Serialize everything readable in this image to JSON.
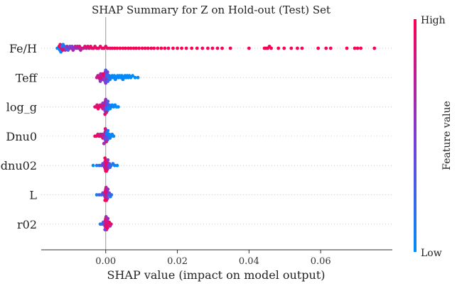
{
  "chart_data": {
    "type": "scatter",
    "subtype": "shap-beeswarm",
    "title": "SHAP Summary for Z on Hold-out (Test) Set",
    "xlabel": "SHAP value (impact on model output)",
    "xlim": [
      -0.018,
      0.08
    ],
    "xticks": [
      {
        "value": 0.0,
        "label": "0.00"
      },
      {
        "value": 0.02,
        "label": "0.02"
      },
      {
        "value": 0.04,
        "label": "0.04"
      },
      {
        "value": 0.06,
        "label": "0.06"
      }
    ],
    "colorbar": {
      "label": "Feature value",
      "high": "High",
      "low": "Low",
      "low_color": "#008bfb",
      "mid_color": "#7d3cd6",
      "high_color": "#ff0052"
    },
    "grid": "dotted-horizontal",
    "features": [
      {
        "name": "Fe/H",
        "points": [
          [
            -0.0135,
            0.0
          ],
          [
            -0.013,
            0.05
          ],
          [
            -0.013,
            0.95
          ],
          [
            -0.0128,
            0.1
          ],
          [
            -0.0127,
            0.9
          ],
          [
            -0.0125,
            0.0
          ],
          [
            -0.0124,
            0.85
          ],
          [
            -0.0122,
            0.05
          ],
          [
            -0.012,
            0.9
          ],
          [
            -0.0119,
            0.1
          ],
          [
            -0.0117,
            0.8
          ],
          [
            -0.0115,
            0.15
          ],
          [
            -0.0113,
            0.7
          ],
          [
            -0.011,
            0.2
          ],
          [
            -0.0108,
            0.6
          ],
          [
            -0.0105,
            0.3
          ],
          [
            -0.0102,
            0.55
          ],
          [
            -0.01,
            0.45
          ],
          [
            -0.0097,
            0.6
          ],
          [
            -0.0094,
            0.5
          ],
          [
            -0.0091,
            0.7
          ],
          [
            -0.0088,
            0.55
          ],
          [
            -0.0085,
            0.75
          ],
          [
            -0.0082,
            0.6
          ],
          [
            -0.0079,
            0.8
          ],
          [
            -0.0076,
            0.65
          ],
          [
            -0.0073,
            0.85
          ],
          [
            -0.007,
            0.7
          ],
          [
            -0.0066,
            0.85
          ],
          [
            -0.0062,
            0.75
          ],
          [
            -0.0058,
            0.9
          ],
          [
            -0.0054,
            0.8
          ],
          [
            -0.005,
            0.9
          ],
          [
            -0.0046,
            0.85
          ],
          [
            -0.0042,
            0.95
          ],
          [
            -0.0038,
            0.85
          ],
          [
            -0.0034,
            0.95
          ],
          [
            -0.003,
            0.9
          ],
          [
            -0.0025,
            0.95
          ],
          [
            -0.002,
            0.9
          ],
          [
            -0.0015,
            0.95
          ],
          [
            -0.001,
            0.9
          ],
          [
            -0.0005,
            0.95
          ],
          [
            0.0,
            0.9
          ],
          [
            0.0005,
            0.95
          ],
          [
            0.0012,
            0.9
          ],
          [
            0.0018,
            0.95
          ],
          [
            0.0025,
            1.0
          ],
          [
            0.0032,
            0.95
          ],
          [
            0.004,
            1.0
          ],
          [
            0.0048,
            0.95
          ],
          [
            0.0055,
            1.0
          ],
          [
            0.0063,
            0.95
          ],
          [
            0.007,
            1.0
          ],
          [
            0.0078,
            0.95
          ],
          [
            0.0085,
            1.0
          ],
          [
            0.0093,
            0.95
          ],
          [
            0.0102,
            1.0
          ],
          [
            0.011,
            0.95
          ],
          [
            0.0118,
            1.0
          ],
          [
            0.0127,
            0.95
          ],
          [
            0.0135,
            1.0
          ],
          [
            0.0145,
            0.95
          ],
          [
            0.0155,
            1.0
          ],
          [
            0.0165,
            1.0
          ],
          [
            0.0175,
            0.95
          ],
          [
            0.0188,
            1.0
          ],
          [
            0.02,
            0.95
          ],
          [
            0.0212,
            1.0
          ],
          [
            0.0225,
            0.95
          ],
          [
            0.024,
            1.0
          ],
          [
            0.0255,
            1.0
          ],
          [
            0.027,
            0.95
          ],
          [
            0.0285,
            1.0
          ],
          [
            0.0298,
            1.0
          ],
          [
            0.0312,
            0.95
          ],
          [
            0.0325,
            1.0
          ],
          [
            0.0348,
            1.0
          ],
          [
            0.04,
            1.0
          ],
          [
            0.0443,
            1.0
          ],
          [
            0.0447,
            0.95
          ],
          [
            0.0452,
            1.0
          ],
          [
            0.0457,
            0.95
          ],
          [
            0.0462,
            1.0
          ],
          [
            0.0482,
            1.0
          ],
          [
            0.0498,
            1.0
          ],
          [
            0.0518,
            1.0
          ],
          [
            0.0535,
            1.0
          ],
          [
            0.0548,
            0.95
          ],
          [
            0.0593,
            1.0
          ],
          [
            0.0615,
            1.0
          ],
          [
            0.0628,
            0.95
          ],
          [
            0.0673,
            1.0
          ],
          [
            0.0695,
            1.0
          ],
          [
            0.0703,
            0.95
          ],
          [
            0.0712,
            1.0
          ],
          [
            0.075,
            1.0
          ]
        ]
      },
      {
        "name": "Teff",
        "points": [
          [
            -0.0025,
            0.7
          ],
          [
            -0.0022,
            0.8
          ],
          [
            -0.002,
            0.9
          ],
          [
            -0.0018,
            0.75
          ],
          [
            -0.0016,
            0.85
          ],
          [
            -0.0014,
            0.6
          ],
          [
            -0.0012,
            0.9
          ],
          [
            -0.001,
            0.7
          ],
          [
            -0.0008,
            0.8
          ],
          [
            -0.0006,
            0.6
          ],
          [
            -0.0005,
            0.9
          ],
          [
            -0.0004,
            0.5
          ],
          [
            -0.0003,
            0.7
          ],
          [
            -0.0002,
            0.4
          ],
          [
            -0.0001,
            0.6
          ],
          [
            0.0,
            0.5
          ],
          [
            0.0001,
            0.4
          ],
          [
            0.0002,
            0.3
          ],
          [
            0.0003,
            0.6
          ],
          [
            0.0004,
            0.2
          ],
          [
            0.0006,
            0.3
          ],
          [
            0.0008,
            0.1
          ],
          [
            0.001,
            0.2
          ],
          [
            0.0012,
            0.05
          ],
          [
            0.0015,
            0.1
          ],
          [
            0.0018,
            0.0
          ],
          [
            0.0021,
            0.05
          ],
          [
            0.0024,
            0.0
          ],
          [
            0.0027,
            0.05
          ],
          [
            0.003,
            0.0
          ],
          [
            0.0033,
            0.0
          ],
          [
            0.0036,
            0.05
          ],
          [
            0.0039,
            0.0
          ],
          [
            0.0042,
            0.0
          ],
          [
            0.0045,
            0.0
          ],
          [
            0.0048,
            0.05
          ],
          [
            0.0051,
            0.0
          ],
          [
            0.0054,
            0.0
          ],
          [
            0.0057,
            0.0
          ],
          [
            0.006,
            0.0
          ],
          [
            0.0063,
            0.0
          ],
          [
            0.0066,
            0.0
          ],
          [
            0.007,
            0.0
          ],
          [
            0.0075,
            0.0
          ],
          [
            0.0082,
            0.0
          ],
          [
            0.009,
            0.0
          ],
          [
            -0.0015,
            0.5
          ],
          [
            0.0,
            0.3
          ],
          [
            0.0005,
            0.5
          ],
          [
            -0.0008,
            0.95
          ]
        ]
      },
      {
        "name": "log_g",
        "points": [
          [
            -0.003,
            0.9
          ],
          [
            -0.0027,
            0.95
          ],
          [
            -0.0024,
            0.85
          ],
          [
            -0.0021,
            0.9
          ],
          [
            -0.0018,
            0.95
          ],
          [
            -0.0015,
            0.8
          ],
          [
            -0.0012,
            0.9
          ],
          [
            -0.001,
            0.75
          ],
          [
            -0.0008,
            0.85
          ],
          [
            -0.0006,
            0.7
          ],
          [
            -0.0005,
            0.9
          ],
          [
            -0.0004,
            0.6
          ],
          [
            -0.0003,
            0.8
          ],
          [
            -0.0002,
            0.5
          ],
          [
            -0.0001,
            0.7
          ],
          [
            0.0,
            0.4
          ],
          [
            0.0,
            0.6
          ],
          [
            0.0001,
            0.3
          ],
          [
            0.0002,
            0.5
          ],
          [
            0.0003,
            0.2
          ],
          [
            0.0004,
            0.4
          ],
          [
            0.0005,
            0.1
          ],
          [
            0.0006,
            0.3
          ],
          [
            0.0008,
            0.05
          ],
          [
            0.001,
            0.2
          ],
          [
            0.0012,
            0.0
          ],
          [
            0.0015,
            0.1
          ],
          [
            0.0018,
            0.0
          ],
          [
            0.0022,
            0.05
          ],
          [
            0.0026,
            0.0
          ],
          [
            0.003,
            0.0
          ],
          [
            0.0035,
            0.0
          ],
          [
            -0.0008,
            0.6
          ],
          [
            -0.0002,
            0.9
          ],
          [
            0.0002,
            0.8
          ]
        ]
      },
      {
        "name": "Dnu0",
        "points": [
          [
            -0.003,
            0.9
          ],
          [
            -0.0026,
            0.95
          ],
          [
            -0.0022,
            0.85
          ],
          [
            -0.0018,
            0.9
          ],
          [
            -0.0015,
            0.8
          ],
          [
            -0.0012,
            0.95
          ],
          [
            -0.001,
            0.7
          ],
          [
            -0.0008,
            0.9
          ],
          [
            -0.0006,
            0.6
          ],
          [
            -0.0004,
            0.8
          ],
          [
            -0.0003,
            0.5
          ],
          [
            -0.0002,
            0.7
          ],
          [
            -0.0001,
            0.4
          ],
          [
            0.0,
            0.6
          ],
          [
            0.0,
            0.3
          ],
          [
            0.0001,
            0.5
          ],
          [
            0.0002,
            0.2
          ],
          [
            0.0003,
            0.4
          ],
          [
            0.0004,
            0.1
          ],
          [
            0.0005,
            0.3
          ],
          [
            0.0006,
            0.05
          ],
          [
            0.0008,
            0.2
          ],
          [
            0.001,
            0.0
          ],
          [
            0.0012,
            0.1
          ],
          [
            0.0015,
            0.0
          ],
          [
            0.0018,
            0.05
          ],
          [
            0.0022,
            0.0
          ],
          [
            -0.0001,
            0.85
          ],
          [
            0.0002,
            0.75
          ],
          [
            -0.0005,
            0.65
          ]
        ]
      },
      {
        "name": "dnu02",
        "points": [
          [
            -0.0035,
            0.0
          ],
          [
            -0.0025,
            0.1
          ],
          [
            -0.0018,
            0.2
          ],
          [
            -0.0012,
            0.3
          ],
          [
            -0.0008,
            0.4
          ],
          [
            -0.0006,
            0.5
          ],
          [
            -0.0004,
            0.6
          ],
          [
            -0.0003,
            0.7
          ],
          [
            -0.0002,
            0.8
          ],
          [
            -0.0001,
            0.9
          ],
          [
            0.0,
            0.95
          ],
          [
            0.0,
            0.85
          ],
          [
            0.0001,
            0.9
          ],
          [
            0.0002,
            0.95
          ],
          [
            0.0003,
            0.8
          ],
          [
            0.0004,
            0.9
          ],
          [
            0.0005,
            0.7
          ],
          [
            0.0006,
            0.6
          ],
          [
            0.0008,
            0.5
          ],
          [
            0.001,
            0.4
          ],
          [
            0.0012,
            0.3
          ],
          [
            0.0015,
            0.2
          ],
          [
            0.002,
            0.1
          ],
          [
            0.0025,
            0.05
          ],
          [
            0.0032,
            0.0
          ],
          [
            0.0002,
            1.0
          ],
          [
            -0.0002,
            0.95
          ]
        ]
      },
      {
        "name": "L",
        "points": [
          [
            -0.0025,
            0.1
          ],
          [
            -0.0018,
            0.3
          ],
          [
            -0.0012,
            0.2
          ],
          [
            -0.0008,
            0.5
          ],
          [
            -0.0005,
            0.4
          ],
          [
            -0.0003,
            0.7
          ],
          [
            -0.0002,
            0.6
          ],
          [
            -0.0001,
            0.9
          ],
          [
            0.0,
            0.95
          ],
          [
            0.0,
            0.8
          ],
          [
            0.0001,
            0.9
          ],
          [
            0.0002,
            0.85
          ],
          [
            0.0003,
            0.7
          ],
          [
            0.0004,
            0.9
          ],
          [
            0.0005,
            0.5
          ],
          [
            0.0006,
            0.6
          ],
          [
            0.0008,
            0.3
          ],
          [
            0.001,
            0.4
          ],
          [
            0.0013,
            0.1
          ],
          [
            0.0016,
            0.2
          ],
          [
            0.0002,
            1.0
          ],
          [
            -0.0002,
            0.95
          ],
          [
            0.0001,
            0.75
          ]
        ]
      },
      {
        "name": "r02",
        "points": [
          [
            -0.0015,
            0.1
          ],
          [
            -0.001,
            0.2
          ],
          [
            -0.0007,
            0.3
          ],
          [
            -0.0005,
            0.4
          ],
          [
            -0.0003,
            0.6
          ],
          [
            -0.0002,
            0.7
          ],
          [
            -0.0001,
            0.8
          ],
          [
            0.0,
            0.9
          ],
          [
            0.0,
            0.95
          ],
          [
            0.0001,
            0.85
          ],
          [
            0.0002,
            0.9
          ],
          [
            0.0003,
            0.95
          ],
          [
            0.0004,
            0.75
          ],
          [
            0.0005,
            0.9
          ],
          [
            0.0006,
            0.6
          ],
          [
            0.0008,
            0.8
          ],
          [
            0.001,
            0.95
          ],
          [
            0.0012,
            0.7
          ],
          [
            0.0015,
            0.9
          ],
          [
            0.0002,
            1.0
          ],
          [
            -0.0002,
            0.5
          ],
          [
            0.0001,
            0.65
          ]
        ]
      }
    ]
  }
}
